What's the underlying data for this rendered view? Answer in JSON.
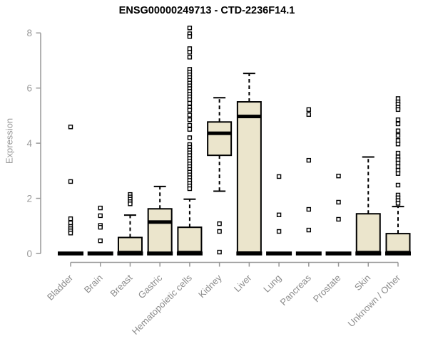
{
  "chart_data": {
    "type": "box",
    "title": "ENSG00000249713 - CTD-2236F14.1",
    "ylabel": "Expression",
    "xlabel": "",
    "ylim": [
      0,
      8
    ],
    "yticks": [
      0,
      2,
      4,
      6,
      8
    ],
    "grid": false,
    "legend": "none",
    "categories": [
      "Bladder",
      "Brain",
      "Breast",
      "Gastric",
      "Hematopoietic cells",
      "Kidney",
      "Liver",
      "Lung",
      "Pancreas",
      "Prostate",
      "Skin",
      "Unknown / Other"
    ],
    "series": [
      {
        "category": "Bladder",
        "q1": 0,
        "median": 0,
        "q3": 0,
        "whisker_low": 0,
        "whisker_high": 0,
        "outliers": [
          4.59,
          2.61,
          1.26,
          1.11,
          0.98,
          0.9,
          0.82,
          0.74
        ]
      },
      {
        "category": "Brain",
        "q1": 0,
        "median": 0,
        "q3": 0,
        "whisker_low": 0,
        "whisker_high": 0,
        "outliers": [
          1.65,
          1.37,
          1.02,
          0.95,
          0.46
        ]
      },
      {
        "category": "Breast",
        "q1": 0,
        "median": 0.03,
        "q3": 0.58,
        "whisker_low": 0,
        "whisker_high": 1.39,
        "outliers": [
          2.14,
          2.05,
          1.97,
          1.88,
          1.8
        ]
      },
      {
        "category": "Gastric",
        "q1": 0,
        "median": 1.14,
        "q3": 1.62,
        "whisker_low": 0,
        "whisker_high": 2.43,
        "outliers": []
      },
      {
        "category": "Hematopoietic cells",
        "q1": 0,
        "median": 0.03,
        "q3": 0.95,
        "whisker_low": 0,
        "whisker_high": 1.97,
        "outliers": [
          8.18,
          7.97,
          7.87,
          7.43,
          7.3,
          7.12,
          6.68,
          6.58,
          6.48,
          6.38,
          6.28,
          6.18,
          6.08,
          5.98,
          5.88,
          5.78,
          5.68,
          5.58,
          5.45,
          5.3,
          5.2,
          5.02,
          4.85,
          4.65,
          4.5,
          4.2,
          3.95,
          3.85,
          3.75,
          3.65,
          3.55,
          3.45,
          3.35,
          3.25,
          3.15,
          3.05,
          2.95,
          2.85,
          2.75,
          2.65,
          2.55,
          2.45,
          2.35
        ]
      },
      {
        "category": "Kidney",
        "q1": 3.56,
        "median": 4.36,
        "q3": 4.77,
        "whisker_low": 2.26,
        "whisker_high": 5.65,
        "outliers": [
          1.08,
          0.8,
          0.05
        ]
      },
      {
        "category": "Liver",
        "q1": 0.05,
        "median": 4.97,
        "q3": 5.5,
        "whisker_low": 0.05,
        "whisker_high": 6.53,
        "outliers": []
      },
      {
        "category": "Lung",
        "q1": 0,
        "median": 0,
        "q3": 0,
        "whisker_low": 0,
        "whisker_high": 0,
        "outliers": [
          2.79,
          1.4,
          0.8
        ]
      },
      {
        "category": "Pancreas",
        "q1": 0,
        "median": 0,
        "q3": 0,
        "whisker_low": 0,
        "whisker_high": 0,
        "outliers": [
          5.22,
          5.04,
          3.38,
          1.6,
          0.85
        ]
      },
      {
        "category": "Prostate",
        "q1": 0,
        "median": 0,
        "q3": 0,
        "whisker_low": 0,
        "whisker_high": 0,
        "outliers": [
          2.81,
          1.86,
          1.24
        ]
      },
      {
        "category": "Skin",
        "q1": 0,
        "median": 0.03,
        "q3": 1.44,
        "whisker_low": 0,
        "whisker_high": 3.5,
        "outliers": []
      },
      {
        "category": "Unknown / Other",
        "q1": 0,
        "median": 0.03,
        "q3": 0.72,
        "whisker_low": 0,
        "whisker_high": 1.7,
        "outliers": [
          5.62,
          5.5,
          5.42,
          5.3,
          5.22,
          4.85,
          4.7,
          4.45,
          4.28,
          4.1,
          3.97,
          3.64,
          3.5,
          3.4,
          3.28,
          3.15,
          3.02,
          2.9,
          2.48,
          2.12,
          2.02,
          1.92,
          1.82
        ]
      }
    ],
    "colors": {
      "box_fill": "#EBE5CC",
      "box_stroke": "#000000",
      "median": "#000000",
      "whisker": "#000000",
      "outlier_stroke": "#000000",
      "outlier_fill": "#ffffff",
      "axis": "#999999",
      "tick_label": "#999999",
      "category_label": "#8c8c8c",
      "title": "#000000",
      "background": "#ffffff"
    }
  }
}
